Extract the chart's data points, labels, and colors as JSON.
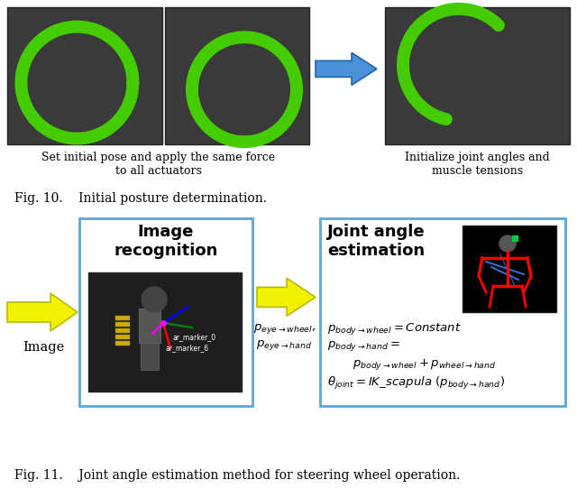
{
  "fig_width": 6.4,
  "fig_height": 5.52,
  "background_color": "#ffffff",
  "top_section": {
    "fig10_caption": "Fig. 10.    Initial posture determination.",
    "left_caption": "Set initial pose and apply the same force\nto all actuators",
    "right_caption": "Initialize joint angles and\nmuscle tensions"
  },
  "bottom_section": {
    "fig11_caption": "Fig. 11.    Joint angle estimation method for steering wheel operation.",
    "image_label": "Image",
    "recognition_title": "Image\nrecognition",
    "joint_title": "Joint angle\nestimation",
    "between_label_line1": "$p_{eye\\rightarrow wheel}$,",
    "between_label_line2": "$p_{eye\\rightarrow hand}$",
    "eq1": "$p_{body\\rightarrow wheel} = Constant$",
    "eq2": "$p_{body\\rightarrow hand} =$",
    "eq3": "$p_{body\\rightarrow wheel} + p_{wheel\\rightarrow hand}$",
    "eq4": "$\\theta_{joint} = IK\\_scapula\\ (p_{body\\rightarrow hand})$"
  },
  "arrow_yellow": "#f0f000",
  "arrow_blue": "#4a90d9",
  "box_blue": "#5ba8d8",
  "photo_bg_dark": "#2a2a2a",
  "photo_bg_robot": "#111111"
}
